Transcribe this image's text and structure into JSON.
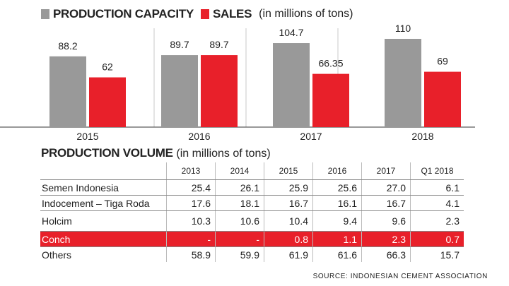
{
  "colors": {
    "capacity": "#999999",
    "sales": "#e8202a"
  },
  "legend": {
    "capacity_label": "Production capacity",
    "sales_label": "Sales",
    "unit": "(in millions of tons)"
  },
  "chart_data": [
    {
      "type": "bar",
      "categories": [
        "2015",
        "2016",
        "2017",
        "2018"
      ],
      "series": [
        {
          "name": "Production capacity",
          "values": [
            88.2,
            89.7,
            104.7,
            110
          ],
          "labels": [
            "88.2",
            "89.7",
            "104.7",
            "110"
          ]
        },
        {
          "name": "Sales",
          "values": [
            62,
            89.7,
            66.35,
            69
          ],
          "labels": [
            "62",
            "89.7",
            "66.35",
            "69"
          ]
        }
      ],
      "ylim": [
        0,
        110
      ],
      "grid": false
    },
    {
      "type": "table",
      "title": "Production volume",
      "unit": "(in millions of tons)",
      "columns": [
        "2013",
        "2014",
        "2015",
        "2016",
        "2017",
        "Q1 2018"
      ],
      "rows": [
        {
          "name": "Semen Indonesia",
          "values": [
            "25.4",
            "26.1",
            "25.9",
            "25.6",
            "27.0",
            "6.1"
          ]
        },
        {
          "name": "Indocement – Tiga Roda",
          "values": [
            "17.6",
            "18.1",
            "16.7",
            "16.1",
            "16.7",
            "4.1"
          ]
        },
        {
          "name": "Holcim",
          "values": [
            "10.3",
            "10.6",
            "10.4",
            "9.4",
            "9.6",
            "2.3"
          ]
        },
        {
          "name": "Conch",
          "values": [
            "-",
            "-",
            "0.8",
            "1.1",
            "2.3",
            "0.7"
          ],
          "highlight": true
        },
        {
          "name": "Others",
          "values": [
            "58.9",
            "59.9",
            "61.9",
            "61.6",
            "66.3",
            "15.7"
          ]
        }
      ]
    }
  ],
  "source": "SOURCE: INDONESIAN CEMENT ASSOCIATION"
}
